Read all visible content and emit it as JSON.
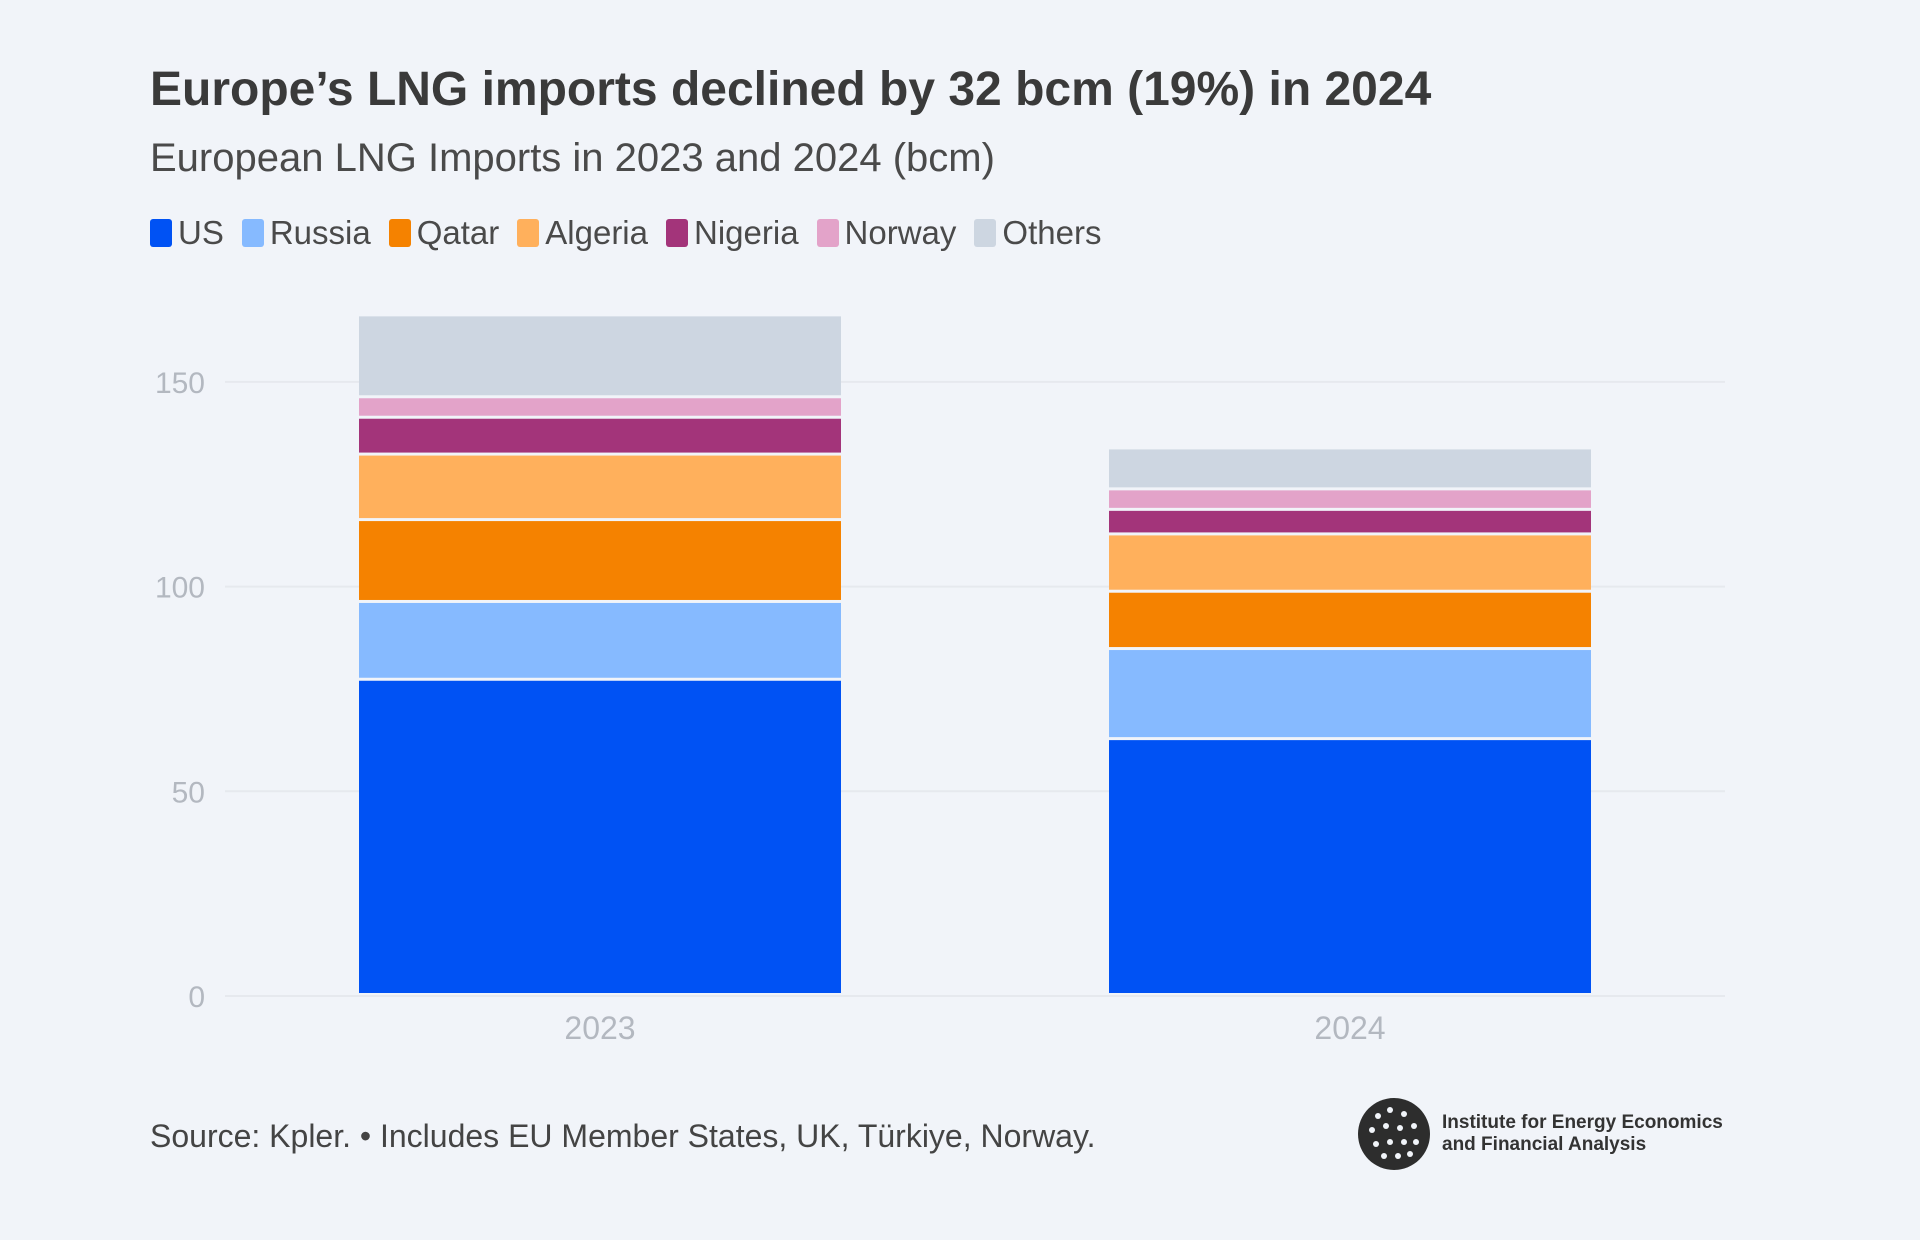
{
  "title": "Europe’s LNG imports declined by 32 bcm (19%) in 2024",
  "subtitle": "European LNG Imports in 2023 and 2024 (bcm)",
  "footer": "Source: Kpler. • Includes EU Member States, UK, Türkiye, Norway.",
  "logo": {
    "line1": "Institute for Energy Economics",
    "line2": "and Financial Analysis"
  },
  "chart_data": {
    "type": "bar",
    "stacked": true,
    "categories": [
      "2023",
      "2024"
    ],
    "series": [
      {
        "name": "US",
        "color": "#0052f4",
        "values": [
          77,
          62.5
        ]
      },
      {
        "name": "Russia",
        "color": "#86baff",
        "values": [
          19,
          22
        ]
      },
      {
        "name": "Qatar",
        "color": "#f58200",
        "values": [
          20,
          14
        ]
      },
      {
        "name": "Algeria",
        "color": "#ffb05c",
        "values": [
          16,
          14
        ]
      },
      {
        "name": "Nigeria",
        "color": "#a3347a",
        "values": [
          9,
          6
        ]
      },
      {
        "name": "Norway",
        "color": "#e3a3c9",
        "values": [
          5,
          5
        ]
      },
      {
        "name": "Others",
        "color": "#cdd6e1",
        "values": [
          20,
          10
        ]
      }
    ],
    "yticks": [
      0,
      50,
      100,
      150
    ],
    "ylim": [
      0,
      170
    ],
    "grid": true,
    "legend": "top-left"
  }
}
